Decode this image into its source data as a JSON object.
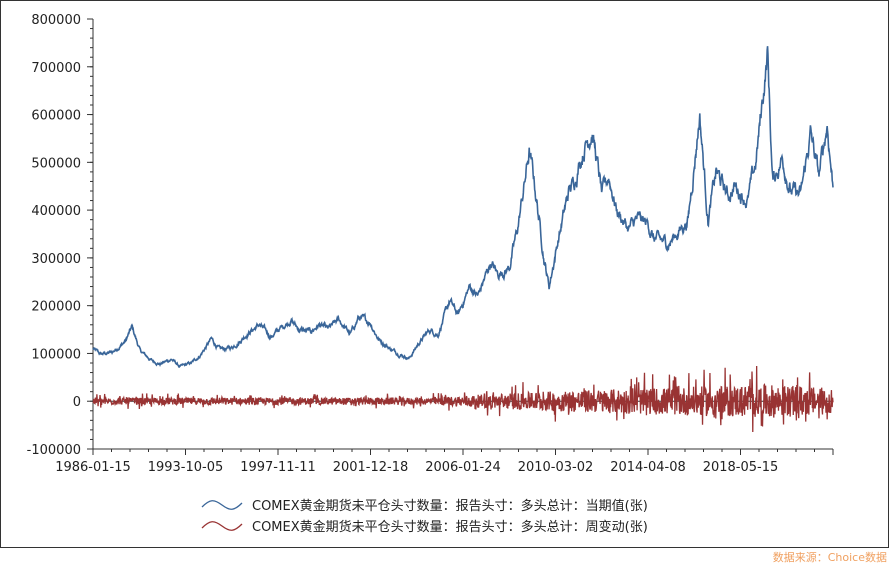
{
  "chart_data": {
    "type": "line",
    "title": "",
    "xlabel": "",
    "ylabel": "",
    "ylim": [
      -100000,
      800000
    ],
    "yticks": [
      -100000,
      0,
      100000,
      200000,
      300000,
      400000,
      500000,
      600000,
      700000,
      800000
    ],
    "ytick_labels": [
      "-100000",
      "0",
      "100000",
      "200000",
      "300000",
      "400000",
      "500000",
      "600000",
      "700000",
      "800000"
    ],
    "xlim": [
      "1986-01-15",
      "2023-04-18"
    ],
    "xtick_labels": [
      "1986-01-15",
      "1993-10-05",
      "1997-11-11",
      "2001-12-18",
      "2006-01-24",
      "2010-03-02",
      "2014-04-08",
      "2018-05-15"
    ],
    "grid": false,
    "legend_position": "bottom",
    "series": [
      {
        "name": "COMEX黄金期货未平仓头寸数量：报告头寸：多头总计：当期值(张)",
        "color": "#3a6699",
        "points": [
          [
            "1986-01-15",
            110000
          ],
          [
            "1986-06-01",
            98000
          ],
          [
            "1987-01-01",
            102000
          ],
          [
            "1987-09-01",
            125000
          ],
          [
            "1988-01-01",
            155000
          ],
          [
            "1988-06-01",
            105000
          ],
          [
            "1989-01-01",
            85000
          ],
          [
            "1989-06-01",
            78000
          ],
          [
            "1990-01-01",
            88000
          ],
          [
            "1990-06-01",
            72000
          ],
          [
            "1991-01-01",
            80000
          ],
          [
            "1991-06-01",
            95000
          ],
          [
            "1992-01-01",
            130000
          ],
          [
            "1992-06-01",
            108000
          ],
          [
            "1993-01-01",
            112000
          ],
          [
            "1993-06-01",
            125000
          ],
          [
            "1993-10-05",
            140000
          ],
          [
            "1994-06-01",
            160000
          ],
          [
            "1995-01-01",
            135000
          ],
          [
            "1995-06-01",
            150000
          ],
          [
            "1996-01-01",
            170000
          ],
          [
            "1996-06-01",
            150000
          ],
          [
            "1997-01-01",
            145000
          ],
          [
            "1997-06-01",
            160000
          ],
          [
            "1997-11-11",
            150000
          ],
          [
            "1998-06-01",
            170000
          ],
          [
            "1999-01-01",
            140000
          ],
          [
            "1999-06-01",
            175000
          ],
          [
            "2000-01-01",
            165000
          ],
          [
            "2000-06-01",
            130000
          ],
          [
            "2001-01-01",
            110000
          ],
          [
            "2001-06-01",
            100000
          ],
          [
            "2001-12-18",
            90000
          ],
          [
            "2002-06-01",
            120000
          ],
          [
            "2003-01-01",
            150000
          ],
          [
            "2003-06-01",
            140000
          ],
          [
            "2004-01-01",
            210000
          ],
          [
            "2004-06-01",
            180000
          ],
          [
            "2005-01-01",
            240000
          ],
          [
            "2005-06-01",
            220000
          ],
          [
            "2006-01-24",
            290000
          ],
          [
            "2006-06-01",
            265000
          ],
          [
            "2007-01-01",
            280000
          ],
          [
            "2007-06-01",
            360000
          ],
          [
            "2008-01-01",
            520000
          ],
          [
            "2008-04-01",
            460000
          ],
          [
            "2008-10-01",
            300000
          ],
          [
            "2009-01-01",
            240000
          ],
          [
            "2009-06-01",
            330000
          ],
          [
            "2010-01-01",
            440000
          ],
          [
            "2010-03-02",
            450000
          ],
          [
            "2010-10-01",
            530000
          ],
          [
            "2011-03-01",
            570000
          ],
          [
            "2011-09-01",
            430000
          ],
          [
            "2012-01-01",
            470000
          ],
          [
            "2012-06-01",
            400000
          ],
          [
            "2013-01-01",
            360000
          ],
          [
            "2013-06-01",
            380000
          ],
          [
            "2014-01-01",
            370000
          ],
          [
            "2014-04-08",
            340000
          ],
          [
            "2015-01-01",
            330000
          ],
          [
            "2015-06-01",
            350000
          ],
          [
            "2016-01-01",
            380000
          ],
          [
            "2016-08-01",
            600000
          ],
          [
            "2017-01-01",
            380000
          ],
          [
            "2017-06-01",
            480000
          ],
          [
            "2018-01-01",
            430000
          ],
          [
            "2018-05-15",
            450000
          ],
          [
            "2019-01-01",
            420000
          ],
          [
            "2019-06-01",
            500000
          ],
          [
            "2020-01-01",
            730000
          ],
          [
            "2020-04-01",
            460000
          ],
          [
            "2020-10-01",
            510000
          ],
          [
            "2021-03-01",
            440000
          ],
          [
            "2021-09-01",
            430000
          ],
          [
            "2022-03-01",
            560000
          ],
          [
            "2022-08-01",
            470000
          ],
          [
            "2023-01-01",
            580000
          ],
          [
            "2023-04-18",
            450000
          ]
        ]
      },
      {
        "name": "COMEX黄金期货未平仓头寸数量：报告头寸：多头总计：周变动(张)",
        "color": "#993333",
        "points": [
          [
            "1986-01-15",
            0
          ],
          [
            "1988-01-01",
            0
          ],
          [
            "1990-01-01",
            0
          ],
          [
            "1992-01-01",
            0
          ],
          [
            "1994-01-01",
            0
          ],
          [
            "1996-01-01",
            0
          ],
          [
            "1998-01-01",
            0
          ],
          [
            "2000-01-01",
            0
          ],
          [
            "2002-01-01",
            0
          ],
          [
            "2004-01-01",
            0
          ],
          [
            "2006-01-01",
            0
          ],
          [
            "2008-01-01",
            0
          ],
          [
            "2010-01-01",
            0
          ],
          [
            "2012-01-01",
            0
          ],
          [
            "2014-01-01",
            0
          ],
          [
            "2016-01-01",
            0
          ],
          [
            "2018-01-01",
            0
          ],
          [
            "2020-01-01",
            0
          ],
          [
            "2022-01-01",
            0
          ],
          [
            "2023-04-18",
            0
          ]
        ],
        "amplitude_envelope": [
          [
            "1986-01-15",
            15000
          ],
          [
            "2003-01-01",
            15000
          ],
          [
            "2006-01-01",
            30000
          ],
          [
            "2010-01-01",
            45000
          ],
          [
            "2016-01-01",
            60000
          ],
          [
            "2020-01-01",
            70000
          ],
          [
            "2023-04-18",
            55000
          ]
        ]
      }
    ]
  },
  "source_label": "数据来源：Choice数据"
}
